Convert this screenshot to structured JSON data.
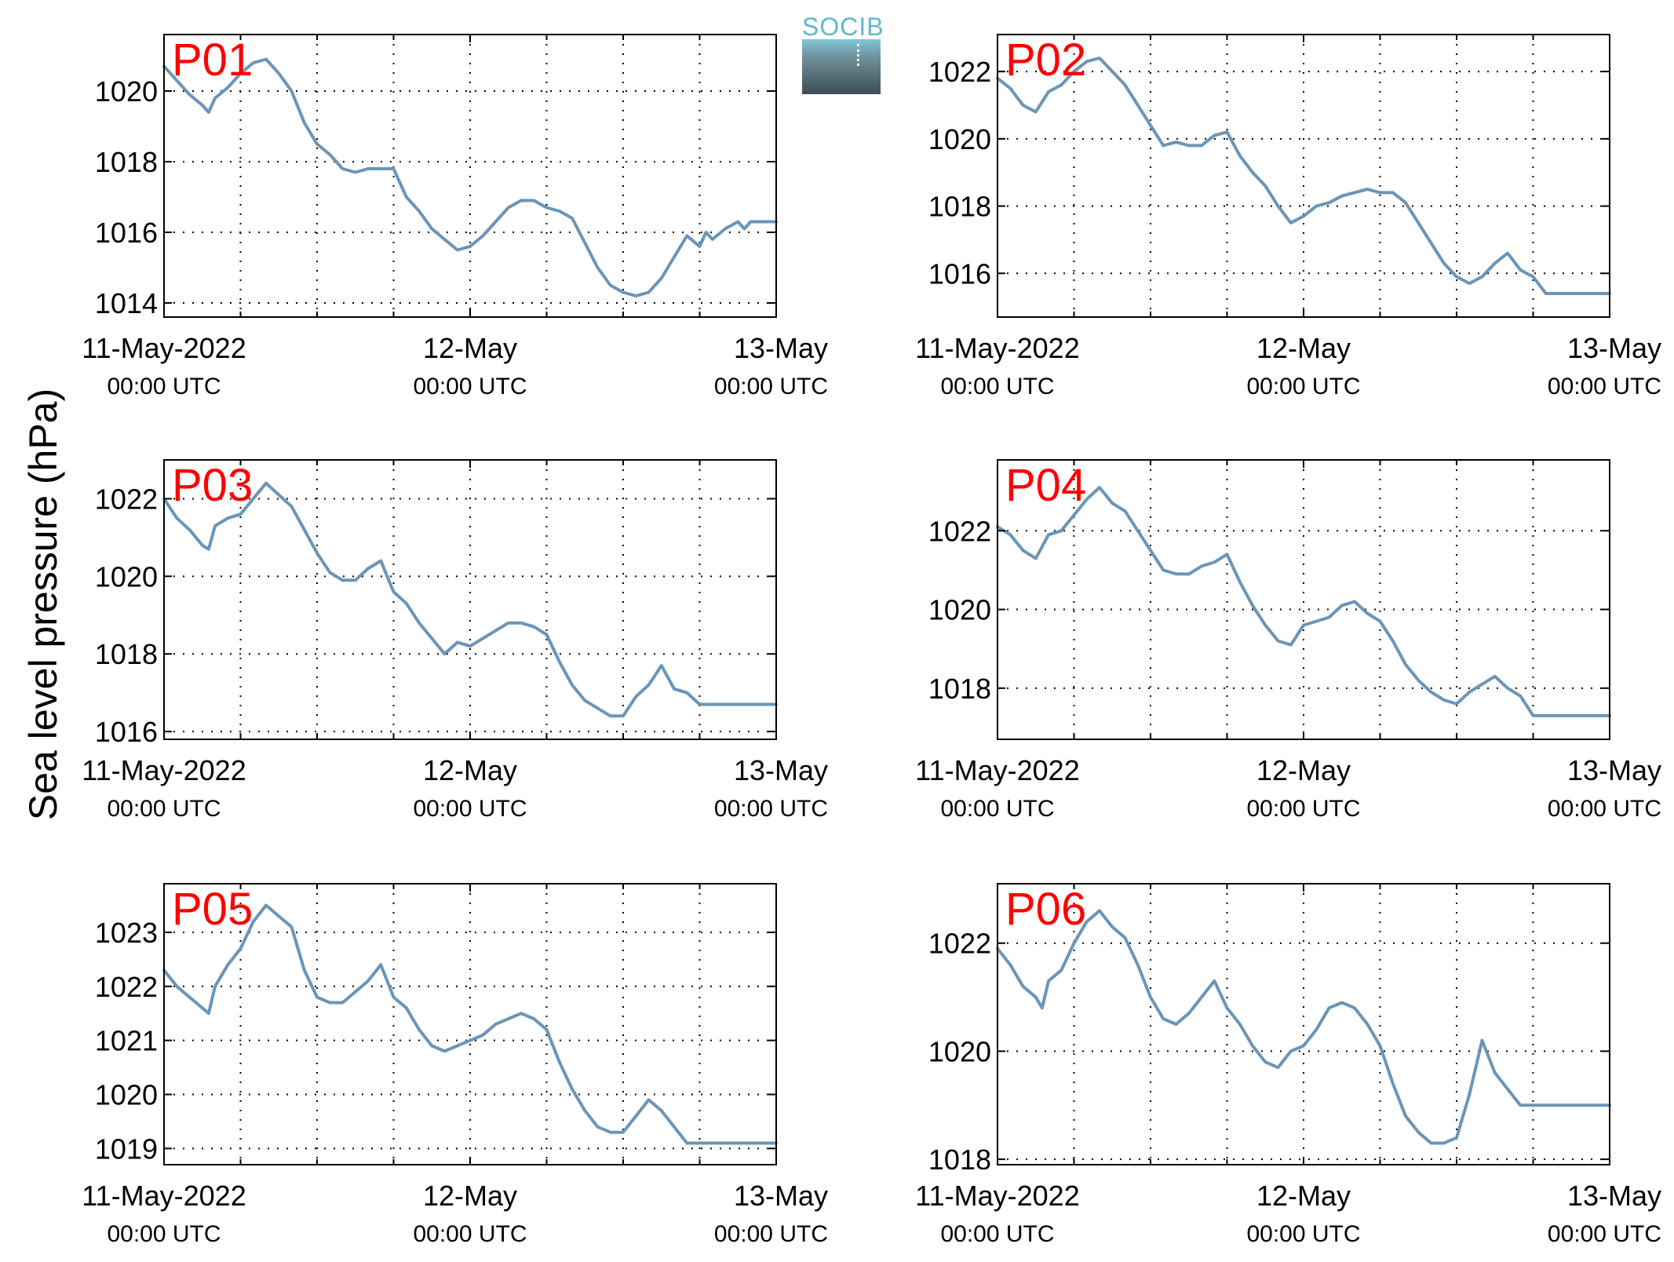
{
  "figure": {
    "ylabel": "Sea level pressure (hPa)",
    "logo_text": "SOCIB",
    "colors": {
      "line": "#6b95b6",
      "panel_label": "#ff0000",
      "axes": "#000000",
      "grid": "#000000"
    }
  },
  "chart_data": [
    {
      "type": "line",
      "label": "P01",
      "xlim": [
        0,
        48
      ],
      "ylim": [
        1013.6,
        1021.6
      ],
      "xticks": [
        0,
        24,
        48
      ],
      "xtick_labels": [
        [
          "11-May-2022",
          "00:00 UTC"
        ],
        [
          "12-May",
          "00:00 UTC"
        ],
        [
          "13-May",
          "00:00 UTC"
        ]
      ],
      "minor_xticks": [
        6,
        12,
        18,
        30,
        36,
        42
      ],
      "yticks": [
        1014,
        1016,
        1018,
        1020
      ],
      "ytick_labels": [
        "1014",
        "1016",
        "1018",
        "1020"
      ],
      "grid": true,
      "series": [
        {
          "x": [
            0,
            1,
            2,
            3,
            3.5,
            4,
            5,
            6,
            7,
            8,
            9,
            10,
            11,
            12,
            13,
            14,
            15,
            16,
            17,
            18,
            19,
            20,
            21,
            22,
            23,
            24,
            25,
            26,
            27,
            28,
            29,
            30,
            31,
            32,
            33,
            34,
            35,
            36,
            37,
            38,
            39,
            40,
            41,
            42,
            42.5,
            43,
            44,
            45,
            45.5,
            46,
            47,
            48
          ],
          "y": [
            1020.7,
            1020.3,
            1019.9,
            1019.6,
            1019.4,
            1019.8,
            1020.1,
            1020.5,
            1020.8,
            1020.9,
            1020.5,
            1020.0,
            1019.1,
            1018.5,
            1018.2,
            1017.8,
            1017.7,
            1017.8,
            1017.8,
            1017.8,
            1017.0,
            1016.6,
            1016.1,
            1015.8,
            1015.5,
            1015.6,
            1015.9,
            1016.3,
            1016.7,
            1016.9,
            1016.9,
            1016.7,
            1016.6,
            1016.4,
            1015.7,
            1015.0,
            1014.5,
            1014.3,
            1014.2,
            1014.3,
            1014.7,
            1015.3,
            1015.9,
            1015.6,
            1016.0,
            1015.8,
            1016.1,
            1016.3,
            1016.1,
            1016.3,
            1016.3,
            1016.3
          ]
        }
      ]
    },
    {
      "type": "line",
      "label": "P02",
      "xlim": [
        0,
        48
      ],
      "ylim": [
        1014.7,
        1023.1
      ],
      "xticks": [
        0,
        24,
        48
      ],
      "xtick_labels": [
        [
          "11-May-2022",
          "00:00 UTC"
        ],
        [
          "12-May",
          "00:00 UTC"
        ],
        [
          "13-May",
          "00:00 UTC"
        ]
      ],
      "minor_xticks": [
        6,
        12,
        18,
        30,
        36,
        42
      ],
      "yticks": [
        1016,
        1018,
        1020,
        1022
      ],
      "ytick_labels": [
        "1016",
        "1018",
        "1020",
        "1022"
      ],
      "grid": true,
      "series": [
        {
          "x": [
            0,
            1,
            2,
            3,
            4,
            5,
            6,
            7,
            8,
            9,
            10,
            11,
            12,
            13,
            14,
            15,
            16,
            17,
            18,
            19,
            20,
            21,
            22,
            23,
            24,
            25,
            26,
            27,
            28,
            29,
            30,
            31,
            32,
            33,
            34,
            35,
            36,
            37,
            38,
            39,
            40,
            41,
            42,
            43,
            44,
            45,
            46,
            47,
            48
          ],
          "y": [
            1021.8,
            1021.5,
            1021.0,
            1020.8,
            1021.4,
            1021.6,
            1022.0,
            1022.3,
            1022.4,
            1022.0,
            1021.6,
            1021.0,
            1020.4,
            1019.8,
            1019.9,
            1019.8,
            1019.8,
            1020.1,
            1020.2,
            1019.5,
            1019.0,
            1018.6,
            1018.0,
            1017.5,
            1017.7,
            1018.0,
            1018.1,
            1018.3,
            1018.4,
            1018.5,
            1018.4,
            1018.4,
            1018.1,
            1017.5,
            1016.9,
            1016.3,
            1015.9,
            1015.7,
            1015.9,
            1016.3,
            1016.6,
            1016.1,
            1015.9,
            1015.4,
            1015.4,
            1015.4,
            1015.4,
            1015.4,
            1015.4
          ]
        }
      ]
    },
    {
      "type": "line",
      "label": "P03",
      "xlim": [
        0,
        48
      ],
      "ylim": [
        1015.8,
        1023.0
      ],
      "xticks": [
        0,
        24,
        48
      ],
      "xtick_labels": [
        [
          "11-May-2022",
          "00:00 UTC"
        ],
        [
          "12-May",
          "00:00 UTC"
        ],
        [
          "13-May",
          "00:00 UTC"
        ]
      ],
      "minor_xticks": [
        6,
        12,
        18,
        30,
        36,
        42
      ],
      "yticks": [
        1016,
        1018,
        1020,
        1022
      ],
      "ytick_labels": [
        "1016",
        "1018",
        "1020",
        "1022"
      ],
      "grid": true,
      "series": [
        {
          "x": [
            0,
            1,
            2,
            3,
            3.5,
            4,
            5,
            6,
            7,
            8,
            9,
            10,
            11,
            12,
            13,
            14,
            15,
            16,
            17,
            18,
            19,
            20,
            21,
            22,
            23,
            24,
            25,
            26,
            27,
            28,
            29,
            30,
            31,
            32,
            33,
            34,
            35,
            36,
            37,
            38,
            39,
            40,
            41,
            42,
            43,
            44,
            45,
            46,
            47,
            48
          ],
          "y": [
            1022.0,
            1021.5,
            1021.2,
            1020.8,
            1020.7,
            1021.3,
            1021.5,
            1021.6,
            1022.0,
            1022.4,
            1022.1,
            1021.8,
            1021.2,
            1020.6,
            1020.1,
            1019.9,
            1019.9,
            1020.2,
            1020.4,
            1019.6,
            1019.3,
            1018.8,
            1018.4,
            1018.0,
            1018.3,
            1018.2,
            1018.4,
            1018.6,
            1018.8,
            1018.8,
            1018.7,
            1018.5,
            1017.8,
            1017.2,
            1016.8,
            1016.6,
            1016.4,
            1016.4,
            1016.9,
            1017.2,
            1017.7,
            1017.1,
            1017.0,
            1016.7,
            1016.7,
            1016.7,
            1016.7,
            1016.7,
            1016.7,
            1016.7
          ]
        }
      ]
    },
    {
      "type": "line",
      "label": "P04",
      "xlim": [
        0,
        48
      ],
      "ylim": [
        1016.7,
        1023.8
      ],
      "xticks": [
        0,
        24,
        48
      ],
      "xtick_labels": [
        [
          "11-May-2022",
          "00:00 UTC"
        ],
        [
          "12-May",
          "00:00 UTC"
        ],
        [
          "13-May",
          "00:00 UTC"
        ]
      ],
      "minor_xticks": [
        6,
        12,
        18,
        30,
        36,
        42
      ],
      "yticks": [
        1018,
        1020,
        1022
      ],
      "ytick_labels": [
        "1018",
        "1020",
        "1022"
      ],
      "grid": true,
      "series": [
        {
          "x": [
            0,
            1,
            2,
            3,
            4,
            5,
            6,
            7,
            8,
            9,
            10,
            11,
            12,
            13,
            14,
            15,
            16,
            17,
            18,
            19,
            20,
            21,
            22,
            23,
            24,
            25,
            26,
            27,
            28,
            29,
            30,
            31,
            32,
            33,
            34,
            35,
            36,
            37,
            38,
            39,
            40,
            41,
            42,
            43,
            44,
            45,
            46,
            47,
            48
          ],
          "y": [
            1022.1,
            1021.9,
            1021.5,
            1021.3,
            1021.9,
            1022.0,
            1022.4,
            1022.8,
            1023.1,
            1022.7,
            1022.5,
            1022.0,
            1021.5,
            1021.0,
            1020.9,
            1020.9,
            1021.1,
            1021.2,
            1021.4,
            1020.7,
            1020.1,
            1019.6,
            1019.2,
            1019.1,
            1019.6,
            1019.7,
            1019.8,
            1020.1,
            1020.2,
            1019.9,
            1019.7,
            1019.2,
            1018.6,
            1018.2,
            1017.9,
            1017.7,
            1017.6,
            1017.9,
            1018.1,
            1018.3,
            1018.0,
            1017.8,
            1017.3,
            1017.3,
            1017.3,
            1017.3,
            1017.3,
            1017.3,
            1017.3
          ]
        }
      ]
    },
    {
      "type": "line",
      "label": "P05",
      "xlim": [
        0,
        48
      ],
      "ylim": [
        1018.7,
        1023.9
      ],
      "xticks": [
        0,
        24,
        48
      ],
      "xtick_labels": [
        [
          "11-May-2022",
          "00:00 UTC"
        ],
        [
          "12-May",
          "00:00 UTC"
        ],
        [
          "13-May",
          "00:00 UTC"
        ]
      ],
      "minor_xticks": [
        6,
        12,
        18,
        30,
        36,
        42
      ],
      "yticks": [
        1019,
        1020,
        1021,
        1022,
        1023
      ],
      "ytick_labels": [
        "1019",
        "1020",
        "1021",
        "1022",
        "1023"
      ],
      "grid": true,
      "series": [
        {
          "x": [
            0,
            1,
            2,
            3,
            3.5,
            4,
            5,
            6,
            7,
            8,
            9,
            10,
            11,
            12,
            13,
            14,
            15,
            16,
            17,
            18,
            19,
            20,
            21,
            22,
            23,
            24,
            25,
            26,
            27,
            28,
            29,
            30,
            31,
            32,
            33,
            34,
            35,
            36,
            37,
            38,
            39,
            40,
            41,
            42,
            43,
            44,
            45,
            46,
            47,
            48
          ],
          "y": [
            1022.3,
            1022.0,
            1021.8,
            1021.6,
            1021.5,
            1022.0,
            1022.4,
            1022.7,
            1023.2,
            1023.5,
            1023.3,
            1023.1,
            1022.3,
            1021.8,
            1021.7,
            1021.7,
            1021.9,
            1022.1,
            1022.4,
            1021.8,
            1021.6,
            1021.2,
            1020.9,
            1020.8,
            1020.9,
            1021.0,
            1021.1,
            1021.3,
            1021.4,
            1021.5,
            1021.4,
            1021.2,
            1020.6,
            1020.1,
            1019.7,
            1019.4,
            1019.3,
            1019.3,
            1019.6,
            1019.9,
            1019.7,
            1019.4,
            1019.1,
            1019.1,
            1019.1,
            1019.1,
            1019.1,
            1019.1,
            1019.1,
            1019.1
          ]
        }
      ]
    },
    {
      "type": "line",
      "label": "P06",
      "xlim": [
        0,
        48
      ],
      "ylim": [
        1017.9,
        1023.1
      ],
      "xticks": [
        0,
        24,
        48
      ],
      "xtick_labels": [
        [
          "11-May-2022",
          "00:00 UTC"
        ],
        [
          "12-May",
          "00:00 UTC"
        ],
        [
          "13-May",
          "00:00 UTC"
        ]
      ],
      "minor_xticks": [
        6,
        12,
        18,
        30,
        36,
        42
      ],
      "yticks": [
        1018,
        1020,
        1022
      ],
      "ytick_labels": [
        "1018",
        "1020",
        "1022"
      ],
      "grid": true,
      "series": [
        {
          "x": [
            0,
            1,
            2,
            3,
            3.5,
            4,
            5,
            6,
            7,
            8,
            9,
            10,
            11,
            12,
            13,
            14,
            15,
            16,
            17,
            18,
            19,
            20,
            21,
            22,
            23,
            24,
            25,
            26,
            27,
            28,
            29,
            30,
            31,
            32,
            33,
            34,
            35,
            36,
            37,
            38,
            39,
            40,
            41,
            42,
            43,
            44,
            45,
            46,
            47,
            48
          ],
          "y": [
            1021.9,
            1021.6,
            1021.2,
            1021.0,
            1020.8,
            1021.3,
            1021.5,
            1022.0,
            1022.4,
            1022.6,
            1022.3,
            1022.1,
            1021.6,
            1021.0,
            1020.6,
            1020.5,
            1020.7,
            1021.0,
            1021.3,
            1020.8,
            1020.5,
            1020.1,
            1019.8,
            1019.7,
            1020.0,
            1020.1,
            1020.4,
            1020.8,
            1020.9,
            1020.8,
            1020.5,
            1020.1,
            1019.4,
            1018.8,
            1018.5,
            1018.3,
            1018.3,
            1018.4,
            1019.2,
            1020.2,
            1019.6,
            1019.3,
            1019.0,
            1019.0,
            1019.0,
            1019.0,
            1019.0,
            1019.0,
            1019.0,
            1019.0
          ]
        }
      ]
    }
  ]
}
